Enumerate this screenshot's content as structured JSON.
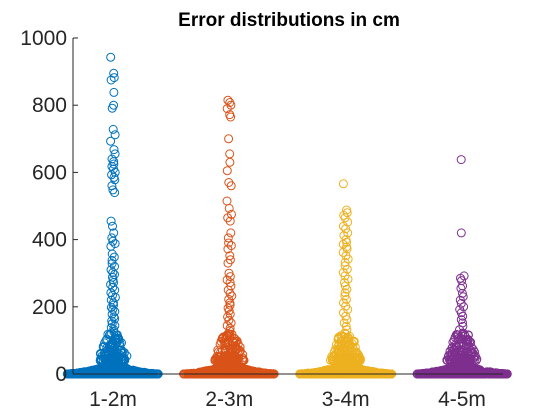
{
  "chart_data": {
    "type": "scatter",
    "subtype": "swarm",
    "title": "Error distributions in cm",
    "xlabel": "",
    "ylabel": "",
    "ylim": [
      0,
      1000
    ],
    "yticks": [
      0,
      200,
      400,
      600,
      800,
      1000
    ],
    "grid": false,
    "legend": "none",
    "series": [
      {
        "category": "1-2m",
        "color": "#0072BD",
        "outliers": [
          943,
          895,
          882,
          875,
          838,
          800,
          791,
          728,
          712,
          693,
          668,
          655,
          640,
          632,
          625,
          618,
          610,
          600,
          593,
          585,
          578,
          560,
          548,
          540,
          455,
          440,
          420,
          405,
          395,
          388,
          380,
          357,
          348,
          338,
          329,
          320,
          310,
          302,
          296,
          288,
          280,
          272,
          266,
          258,
          250,
          242,
          234,
          228,
          220,
          212,
          205,
          198,
          192,
          186,
          178,
          170,
          165,
          158,
          150,
          144,
          138,
          132,
          126,
          120
        ]
      },
      {
        "category": "2-3m",
        "color": "#D95319",
        "outliers": [
          815,
          808,
          800,
          790,
          772,
          765,
          700,
          655,
          630,
          605,
          570,
          560,
          515,
          493,
          475,
          465,
          455,
          420,
          405,
          390,
          382,
          372,
          352,
          340,
          330,
          300,
          290,
          280,
          272,
          262,
          250,
          240,
          232,
          222,
          212,
          205,
          196,
          188,
          178,
          170,
          160,
          152,
          144,
          136,
          128,
          120
        ]
      },
      {
        "category": "3-4m",
        "color": "#EDB120",
        "outliers": [
          566,
          488,
          480,
          472,
          465,
          452,
          440,
          432,
          420,
          412,
          400,
          392,
          386,
          378,
          372,
          362,
          352,
          342,
          332,
          322,
          312,
          302,
          292,
          282,
          272,
          262,
          252,
          242,
          232,
          222,
          212,
          202,
          192,
          182,
          172,
          162,
          152,
          142,
          132,
          122
        ]
      },
      {
        "category": "4-5m",
        "color": "#7E2F8E",
        "outliers": [
          638,
          420,
          292,
          285,
          278,
          262,
          255,
          240,
          230,
          220,
          210,
          200,
          192,
          182,
          172,
          162,
          152,
          142,
          132,
          122,
          112,
          104
        ]
      }
    ]
  }
}
